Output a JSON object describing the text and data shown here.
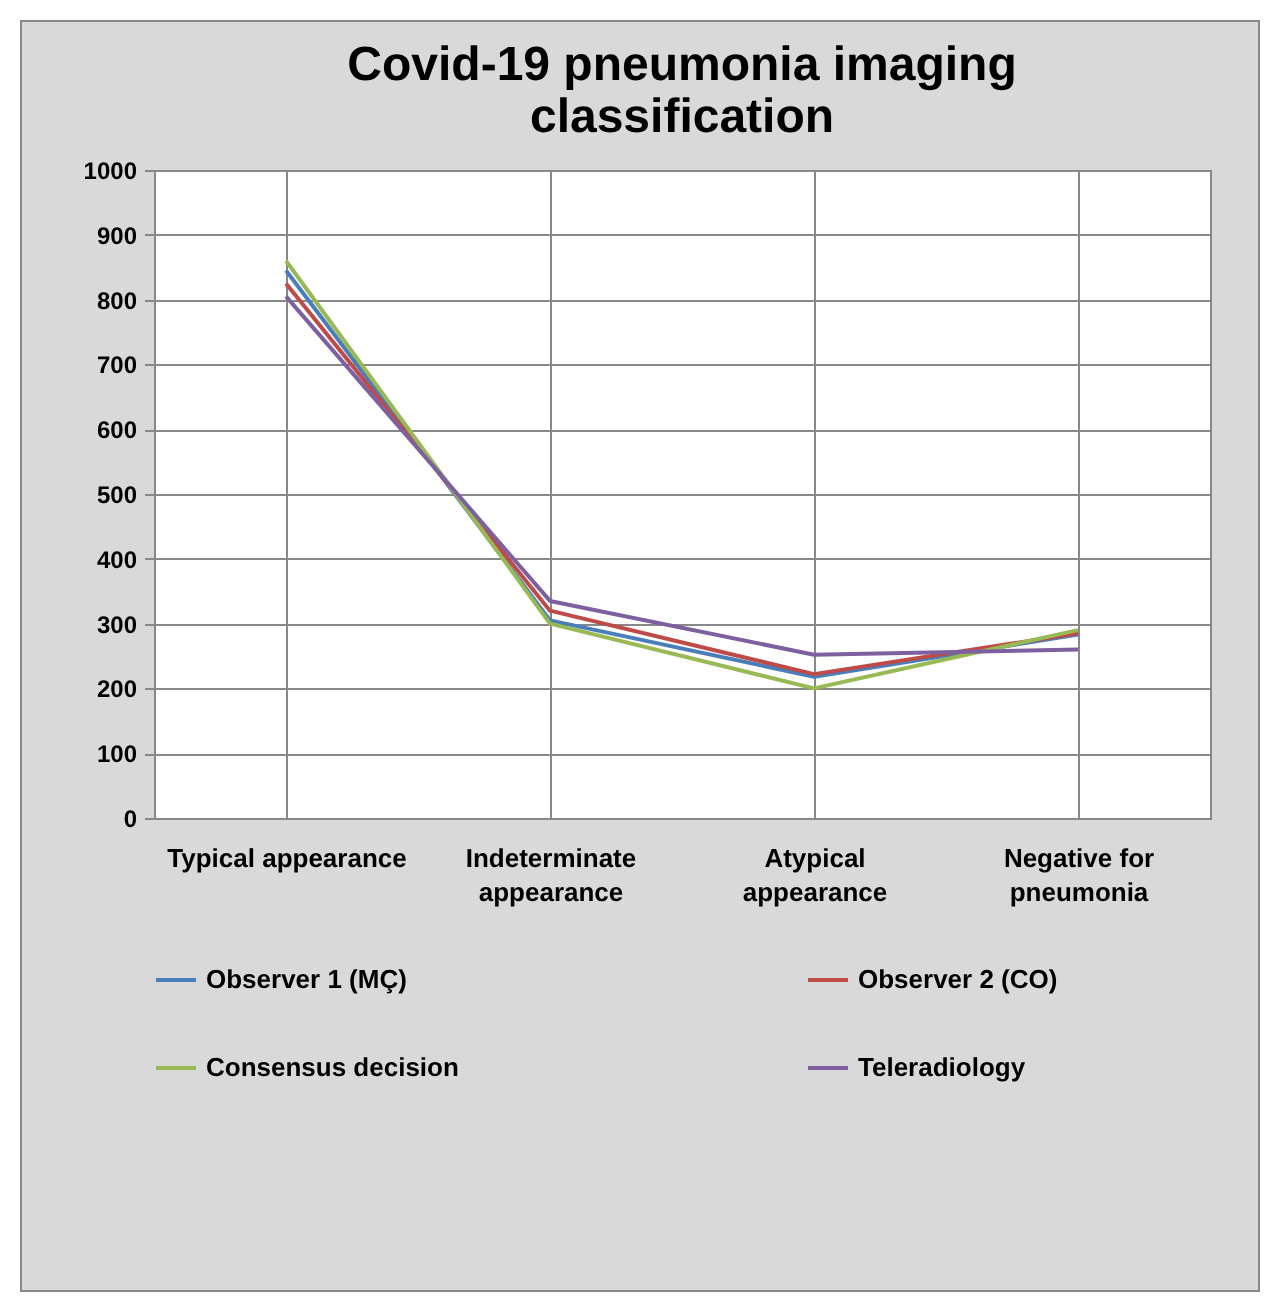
{
  "chart_data": {
    "type": "line",
    "title": [
      "Covid-19 pneumonia imaging",
      "classification"
    ],
    "categories": [
      "Typical appearance",
      "Indeterminate appearance",
      "Atypical appearance",
      "Negative for pneumonia"
    ],
    "series": [
      {
        "name": "Observer 1 (MÇ)",
        "color": "#4a7ebb",
        "values": [
          845,
          305,
          218,
          283
        ]
      },
      {
        "name": "Observer 2 (CO)",
        "color": "#be4b48",
        "values": [
          825,
          320,
          222,
          285
        ]
      },
      {
        "name": "Consensus decision",
        "color": "#98b954",
        "values": [
          860,
          300,
          200,
          290
        ]
      },
      {
        "name": "Teleradiology",
        "color": "#7d60a0",
        "values": [
          805,
          335,
          252,
          260
        ]
      }
    ],
    "ylim": [
      0,
      1000
    ],
    "yticks": [
      0,
      100,
      200,
      300,
      400,
      500,
      600,
      700,
      800,
      900,
      1000
    ],
    "grid": true,
    "legend": "bottom",
    "marker": "none",
    "line_style": "solid"
  }
}
